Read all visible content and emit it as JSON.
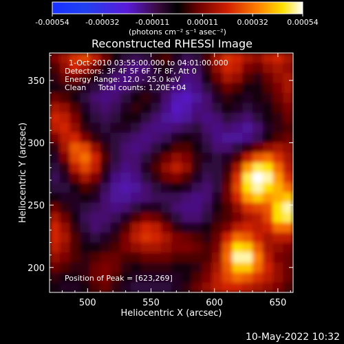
{
  "chart_data": {
    "type": "heatmap",
    "title": "Reconstructed RHESSI Image",
    "xlabel": "Heliocentric X (arcsec)",
    "ylabel": "Heliocentric Y (arcsec)",
    "xlim": [
      470,
      662
    ],
    "ylim": [
      180,
      372
    ],
    "x_ticks": [
      500,
      550,
      600,
      650
    ],
    "y_ticks": [
      200,
      250,
      300,
      350
    ],
    "colorbar": {
      "ticks": [
        "-0.00054",
        "-0.00032",
        "-0.00011",
        "0.00011",
        "0.00032",
        "0.00054"
      ],
      "unit_label": "(photons cm⁻² s⁻¹ asec⁻²)",
      "range": [
        -0.00054,
        0.00054
      ]
    },
    "annotations": [
      "1-Oct-2010 03:55:00.000 to 04:01:00.000",
      "Detectors: 3F 4F 5F 6F 7F 8F, Att 0",
      "Energy Range: 12.0 - 25.0 keV",
      "Clean     Total counts: 1.20E+04"
    ],
    "peak_label": "Position of Peak = [623,269]",
    "peak": [
      623,
      269
    ],
    "approx_grid": {
      "x": [
        474,
        482,
        490,
        498,
        506,
        514,
        522,
        530,
        538,
        546,
        554,
        562,
        570,
        578,
        586,
        594,
        602,
        610,
        618,
        626,
        634,
        642,
        650,
        658
      ],
      "y": [
        368,
        360,
        352,
        344,
        336,
        328,
        320,
        312,
        304,
        296,
        288,
        280,
        272,
        264,
        256,
        248,
        240,
        232,
        224,
        216,
        208,
        200,
        192,
        184
      ],
      "values": [
        [
          0.2,
          0.3,
          0.45,
          0.5,
          0.35,
          0.15,
          0.0,
          -0.1,
          -0.15,
          -0.1,
          0.05,
          0.1,
          -0.05,
          -0.15,
          -0.1,
          0.1,
          0.3,
          0.45,
          0.4,
          0.3,
          0.25,
          0.35,
          0.4,
          0.3
        ],
        [
          0.1,
          0.25,
          0.4,
          0.3,
          0.15,
          0.0,
          -0.1,
          -0.2,
          -0.25,
          -0.2,
          -0.05,
          0.0,
          -0.1,
          -0.2,
          -0.15,
          0.05,
          0.25,
          0.4,
          0.35,
          0.2,
          0.15,
          0.25,
          0.3,
          0.25
        ],
        [
          0.05,
          0.15,
          0.2,
          0.1,
          0.0,
          -0.1,
          -0.2,
          -0.25,
          -0.2,
          -0.15,
          -0.1,
          -0.05,
          -0.15,
          -0.25,
          -0.2,
          0.0,
          0.15,
          0.3,
          0.25,
          0.1,
          0.05,
          0.15,
          0.25,
          0.3
        ],
        [
          0.0,
          0.05,
          0.05,
          -0.05,
          -0.1,
          -0.2,
          -0.25,
          -0.2,
          -0.1,
          -0.05,
          -0.1,
          -0.15,
          -0.25,
          -0.3,
          -0.25,
          -0.1,
          0.05,
          0.15,
          0.1,
          0.0,
          0.0,
          0.1,
          0.2,
          0.3
        ],
        [
          0.15,
          0.1,
          0.0,
          -0.1,
          -0.2,
          -0.25,
          -0.2,
          -0.1,
          0.0,
          0.05,
          -0.05,
          -0.2,
          -0.35,
          -0.4,
          -0.3,
          -0.2,
          -0.05,
          0.05,
          0.0,
          -0.05,
          0.0,
          0.05,
          0.15,
          0.25
        ],
        [
          0.3,
          0.25,
          0.1,
          -0.05,
          -0.15,
          -0.2,
          -0.15,
          -0.05,
          0.05,
          0.0,
          -0.1,
          -0.25,
          -0.4,
          -0.35,
          -0.25,
          -0.2,
          -0.1,
          0.0,
          -0.05,
          -0.1,
          -0.05,
          0.0,
          0.1,
          0.2
        ],
        [
          0.4,
          0.35,
          0.2,
          0.0,
          -0.1,
          -0.15,
          -0.1,
          0.0,
          0.0,
          -0.1,
          -0.2,
          -0.3,
          -0.35,
          -0.3,
          -0.2,
          -0.25,
          -0.2,
          -0.1,
          -0.15,
          -0.2,
          -0.1,
          0.0,
          0.05,
          0.15
        ],
        [
          0.35,
          0.4,
          0.25,
          0.05,
          -0.05,
          -0.1,
          -0.05,
          -0.05,
          -0.1,
          -0.2,
          -0.25,
          -0.25,
          -0.2,
          -0.15,
          -0.1,
          -0.2,
          -0.25,
          -0.2,
          -0.25,
          -0.3,
          -0.2,
          -0.05,
          0.05,
          0.1
        ],
        [
          0.2,
          0.35,
          0.4,
          0.2,
          0.05,
          -0.05,
          -0.1,
          -0.15,
          -0.2,
          -0.25,
          -0.2,
          -0.15,
          -0.05,
          0.0,
          -0.05,
          -0.15,
          -0.25,
          -0.3,
          -0.3,
          -0.25,
          -0.15,
          0.0,
          0.1,
          0.15
        ],
        [
          0.05,
          0.3,
          0.55,
          0.5,
          0.25,
          0.05,
          -0.1,
          -0.2,
          -0.25,
          -0.2,
          -0.1,
          0.0,
          0.1,
          0.1,
          0.0,
          -0.1,
          -0.2,
          -0.2,
          -0.1,
          0.05,
          0.15,
          0.25,
          0.3,
          0.25
        ],
        [
          -0.05,
          0.2,
          0.5,
          0.6,
          0.4,
          0.1,
          -0.1,
          -0.2,
          -0.2,
          -0.1,
          0.05,
          0.15,
          0.25,
          0.2,
          0.05,
          -0.05,
          -0.1,
          -0.05,
          0.1,
          0.35,
          0.55,
          0.6,
          0.45,
          0.3
        ],
        [
          -0.1,
          0.05,
          0.35,
          0.5,
          0.35,
          0.05,
          -0.15,
          -0.25,
          -0.2,
          -0.05,
          0.1,
          0.25,
          0.35,
          0.25,
          0.05,
          -0.1,
          -0.1,
          0.05,
          0.3,
          0.7,
          0.9,
          0.85,
          0.6,
          0.35
        ],
        [
          -0.15,
          -0.05,
          0.15,
          0.3,
          0.2,
          -0.05,
          -0.25,
          -0.3,
          -0.25,
          -0.1,
          0.05,
          0.15,
          0.2,
          0.1,
          -0.05,
          -0.15,
          -0.1,
          0.1,
          0.45,
          0.9,
          1.0,
          0.95,
          0.7,
          0.45
        ],
        [
          -0.1,
          -0.1,
          0.0,
          0.1,
          0.05,
          -0.15,
          -0.3,
          -0.35,
          -0.3,
          -0.2,
          -0.1,
          -0.05,
          0.0,
          -0.05,
          -0.15,
          -0.2,
          -0.1,
          0.15,
          0.5,
          0.85,
          0.95,
          0.85,
          0.75,
          0.6
        ],
        [
          0.0,
          -0.05,
          -0.05,
          0.0,
          -0.05,
          -0.2,
          -0.3,
          -0.3,
          -0.25,
          -0.2,
          -0.15,
          -0.15,
          -0.15,
          -0.2,
          -0.25,
          -0.2,
          -0.05,
          0.15,
          0.4,
          0.7,
          0.8,
          0.7,
          0.75,
          0.8
        ],
        [
          0.15,
          0.05,
          -0.05,
          -0.1,
          -0.15,
          -0.2,
          -0.25,
          -0.2,
          -0.1,
          -0.05,
          -0.05,
          -0.1,
          -0.2,
          -0.25,
          -0.25,
          -0.15,
          0.0,
          0.1,
          0.25,
          0.45,
          0.5,
          0.55,
          0.85,
          0.95
        ],
        [
          0.3,
          0.15,
          0.0,
          -0.15,
          -0.2,
          -0.2,
          -0.15,
          -0.05,
          0.1,
          0.2,
          0.15,
          0.05,
          -0.1,
          -0.2,
          -0.2,
          -0.1,
          0.05,
          0.1,
          0.2,
          0.3,
          0.35,
          0.5,
          0.85,
          0.9
        ],
        [
          0.4,
          0.25,
          0.05,
          -0.1,
          -0.2,
          -0.15,
          -0.05,
          0.1,
          0.3,
          0.4,
          0.35,
          0.2,
          0.05,
          -0.05,
          -0.05,
          0.0,
          0.1,
          0.2,
          0.35,
          0.4,
          0.35,
          0.4,
          0.6,
          0.6
        ],
        [
          0.4,
          0.3,
          0.1,
          -0.05,
          -0.1,
          -0.05,
          0.05,
          0.2,
          0.35,
          0.45,
          0.4,
          0.3,
          0.2,
          0.15,
          0.1,
          0.05,
          0.15,
          0.4,
          0.6,
          0.55,
          0.4,
          0.3,
          0.35,
          0.35
        ],
        [
          0.35,
          0.25,
          0.1,
          0.0,
          0.0,
          0.05,
          0.1,
          0.2,
          0.25,
          0.3,
          0.3,
          0.25,
          0.2,
          0.2,
          0.15,
          0.1,
          0.2,
          0.55,
          0.85,
          0.8,
          0.55,
          0.3,
          0.25,
          0.2
        ],
        [
          0.25,
          0.2,
          0.1,
          0.05,
          0.1,
          0.15,
          0.15,
          0.1,
          0.1,
          0.15,
          0.15,
          0.15,
          0.1,
          0.1,
          0.1,
          0.1,
          0.25,
          0.6,
          0.95,
          0.95,
          0.65,
          0.35,
          0.2,
          0.15
        ],
        [
          0.15,
          0.1,
          0.05,
          0.05,
          0.15,
          0.2,
          0.15,
          0.05,
          0.0,
          0.05,
          0.05,
          0.05,
          0.0,
          0.0,
          0.05,
          0.15,
          0.3,
          0.55,
          0.8,
          0.8,
          0.6,
          0.4,
          0.25,
          0.15
        ],
        [
          0.05,
          0.0,
          0.0,
          0.05,
          0.15,
          0.2,
          0.1,
          0.0,
          -0.05,
          -0.05,
          -0.05,
          -0.05,
          -0.05,
          0.0,
          0.1,
          0.2,
          0.35,
          0.5,
          0.6,
          0.55,
          0.45,
          0.35,
          0.25,
          0.15
        ],
        [
          0.0,
          -0.05,
          -0.05,
          0.0,
          0.1,
          0.15,
          0.05,
          -0.05,
          -0.1,
          -0.1,
          -0.1,
          -0.1,
          -0.05,
          0.05,
          0.15,
          0.25,
          0.35,
          0.4,
          0.4,
          0.35,
          0.3,
          0.25,
          0.2,
          0.1
        ]
      ]
    }
  },
  "footer": {
    "timestamp": "10-May-2022 10:32"
  }
}
